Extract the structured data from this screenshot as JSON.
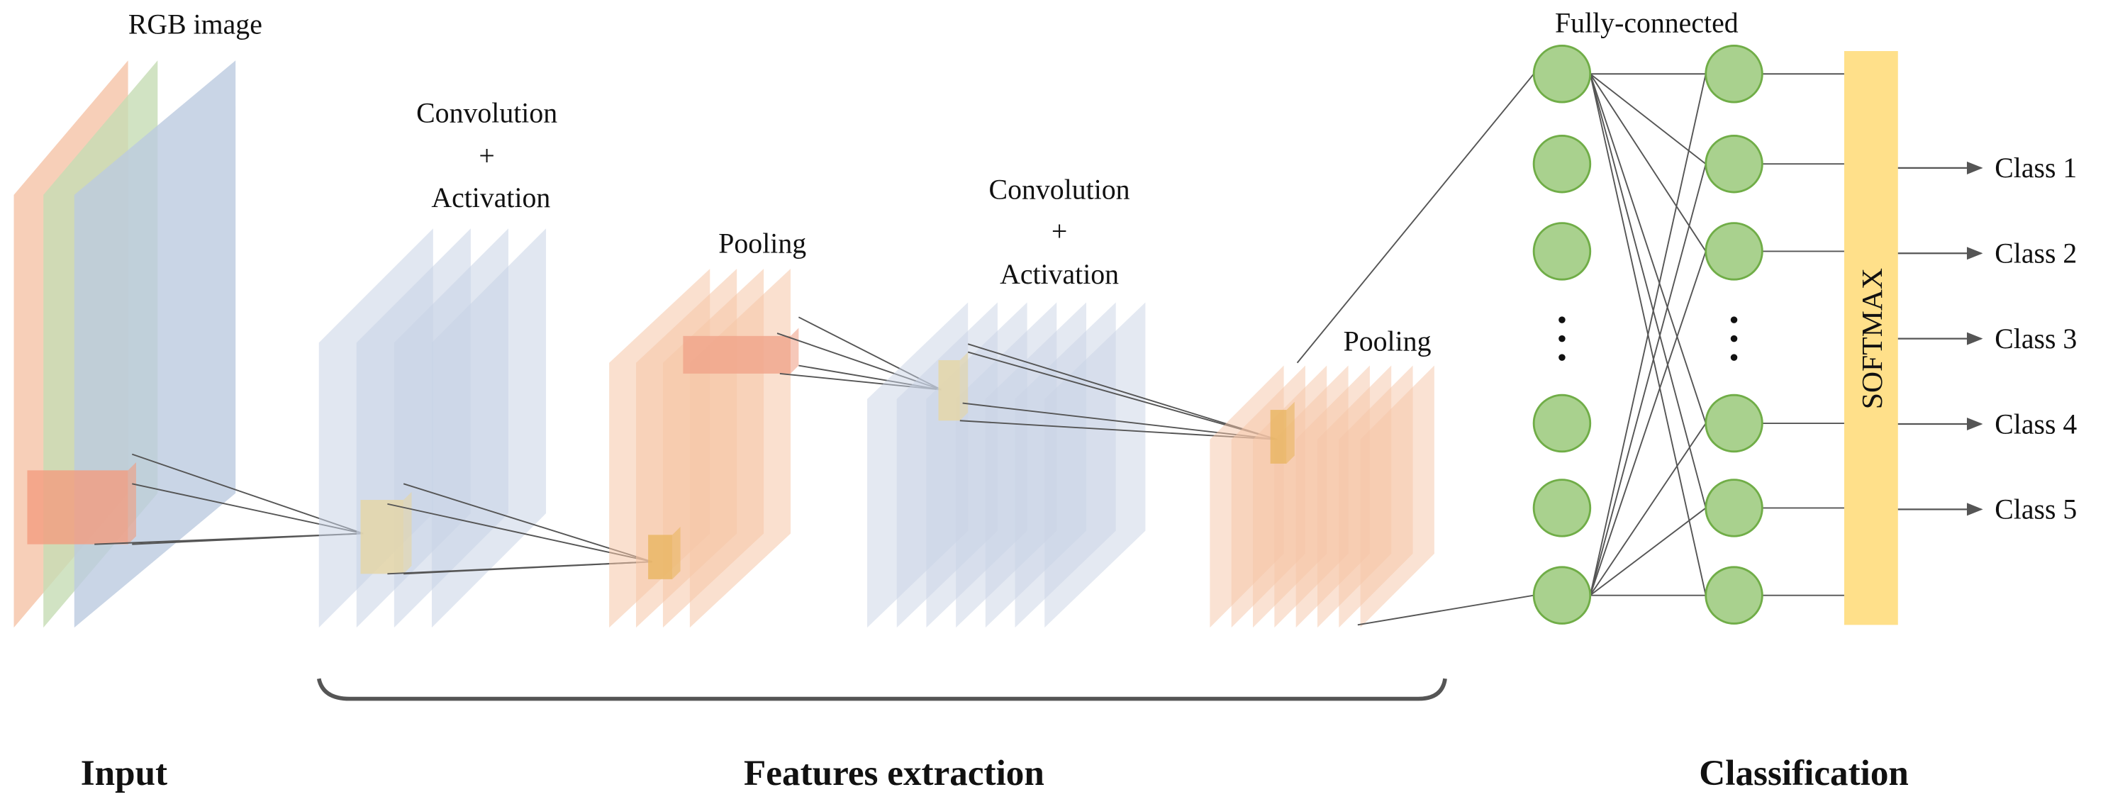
{
  "input_label": "RGB image",
  "conv1_label": [
    "Convolution",
    "+",
    "Activation"
  ],
  "pool1_label": "Pooling",
  "conv2_label": [
    "Convolution",
    "+",
    "Activation"
  ],
  "pool2_label": "Pooling",
  "fc_label": "Fully-connected",
  "softmax_label": "SOFTMAX",
  "classes": [
    "Class 1",
    "Class 2",
    "Class 3",
    "Class 4",
    "Class 5"
  ],
  "sections": {
    "input": "Input",
    "features": "Features extraction",
    "classification": "Classification"
  }
}
